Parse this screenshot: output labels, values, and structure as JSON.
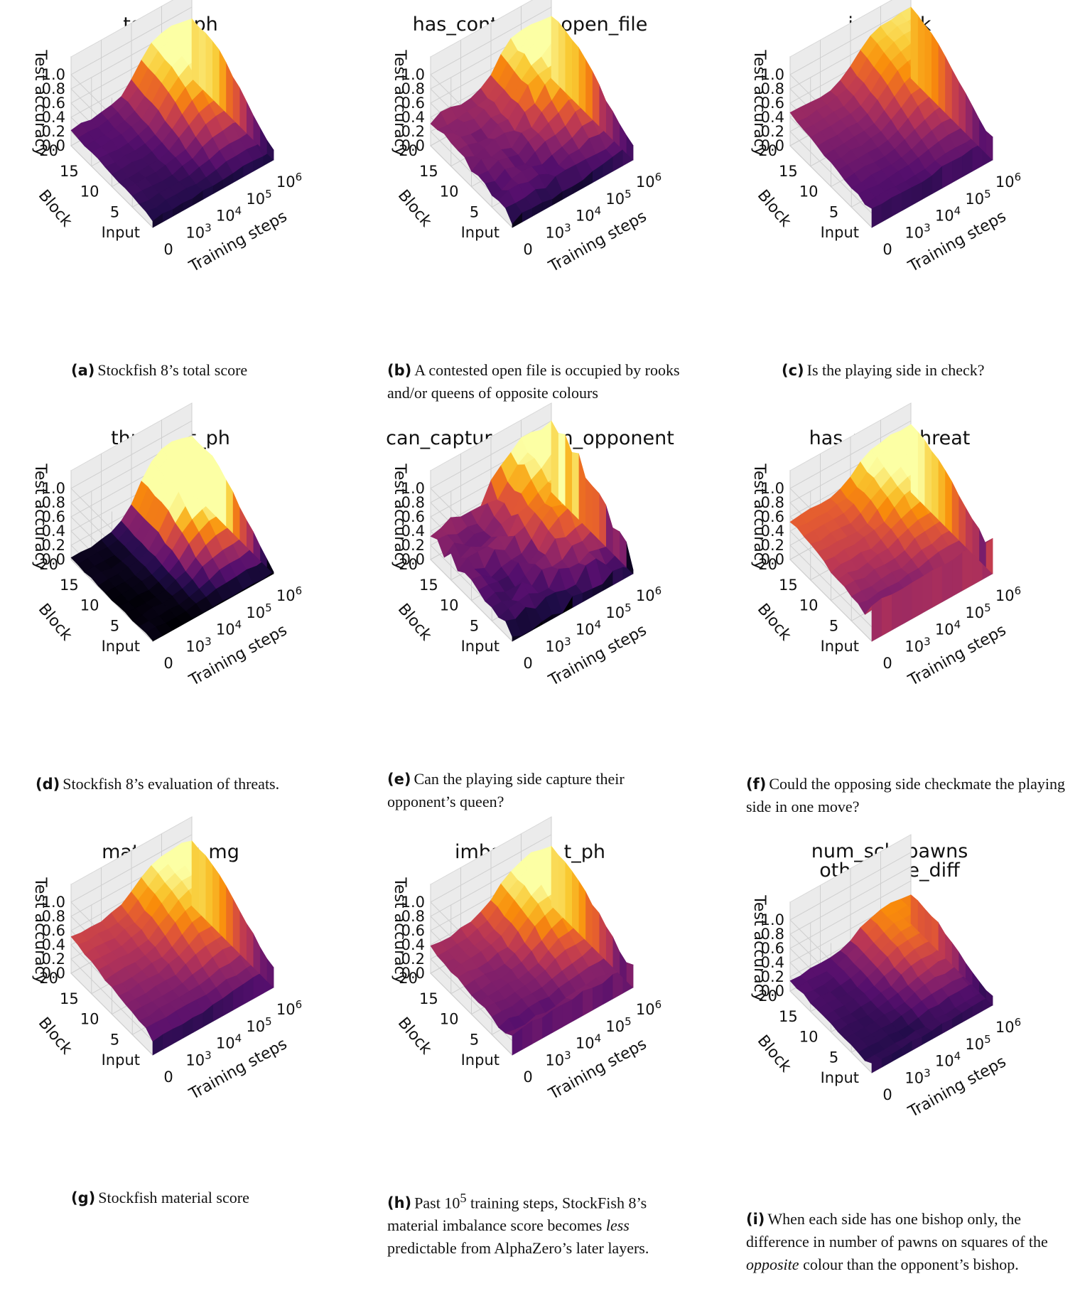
{
  "axes": {
    "z_label": "Test accuracy",
    "z_ticks": [
      "0.0",
      "0.2",
      "0.4",
      "0.6",
      "0.8",
      "1.0"
    ],
    "block_label": "Block",
    "block_ticks": [
      "20",
      "15",
      "10",
      "5",
      "Input"
    ],
    "steps_label": "Training steps",
    "steps_ticks": [
      {
        "base": "0",
        "exp": ""
      },
      {
        "base": "10",
        "exp": "3"
      },
      {
        "base": "10",
        "exp": "4"
      },
      {
        "base": "10",
        "exp": "5"
      },
      {
        "base": "10",
        "exp": "6"
      }
    ]
  },
  "chart_data": [
    {
      "type": "surface",
      "title": "total_t_ph",
      "caption_label": "(a)",
      "caption_parts": [
        {
          "text": "Stockfish 8’s total score",
          "style": "normal"
        }
      ],
      "zlim": [
        0,
        1
      ],
      "peak": 0.92,
      "early": 0.22,
      "input_level": 0.1,
      "late_block_level": 0.55,
      "noise": 0.02,
      "colormap_max": 0.75
    },
    {
      "type": "surface",
      "title": "has_contested_open_file",
      "caption_label": "(b)",
      "caption_parts": [
        {
          "text": "A contested open file is occupied by rooks and/or queens of opposite colours",
          "style": "normal"
        }
      ],
      "zlim": [
        0,
        1
      ],
      "peak": 0.95,
      "early": 0.35,
      "input_level": 0.1,
      "late_block_level": 0.75,
      "noise": 0.06,
      "colormap_max": 0.8
    },
    {
      "type": "surface",
      "title": "in_check",
      "caption_label": "(c)",
      "caption_parts": [
        {
          "text": "Is the playing side in check?",
          "style": "normal"
        }
      ],
      "zlim": [
        0,
        1
      ],
      "peak": 1.0,
      "early": 0.45,
      "input_level": 0.25,
      "late_block_level": 0.95,
      "noise": 0.02,
      "colormap_max": 1.0
    },
    {
      "type": "surface",
      "title": "threats_t_ph",
      "caption_label": "(d)",
      "caption_parts": [
        {
          "text": "Stockfish 8’s evaluation of threats.",
          "style": "normal"
        }
      ],
      "zlim": [
        0,
        1
      ],
      "peak": 0.88,
      "early": 0.02,
      "input_level": 0.0,
      "late_block_level": 0.5,
      "noise": 0.02,
      "colormap_max": 0.55
    },
    {
      "type": "surface",
      "title": "can_capture_queen_opponent",
      "caption_label": "(e)",
      "caption_parts": [
        {
          "text": "Can the playing side capture their opponent’s queen?",
          "style": "normal"
        }
      ],
      "zlim": [
        0,
        1
      ],
      "peak": 0.98,
      "early": 0.35,
      "input_level": 0.05,
      "late_block_level": 0.85,
      "noise": 0.1,
      "colormap_max": 0.85
    },
    {
      "type": "surface",
      "title": "has_mate_threat",
      "caption_label": "(f)",
      "caption_parts": [
        {
          "text": "Could the opposing side checkmate the playing side in one move?",
          "style": "normal"
        }
      ],
      "zlim": [
        0,
        1
      ],
      "peak": 0.98,
      "early": 0.55,
      "input_level": 0.5,
      "late_block_level": 0.85,
      "noise": 0.03,
      "colormap_max": 0.8
    },
    {
      "type": "surface",
      "title": "material_t_mg",
      "caption_label": "(g)",
      "caption_parts": [
        {
          "text": "Stockfish material score",
          "style": "normal"
        }
      ],
      "zlim": [
        0,
        1
      ],
      "peak": 0.97,
      "early": 0.5,
      "input_level": 0.2,
      "late_block_level": 0.8,
      "noise": 0.02,
      "colormap_max": 0.85
    },
    {
      "type": "surface",
      "title": "imbalance_t_ph",
      "caption_label": "(h)",
      "caption_parts": [
        {
          "text": "Past 10",
          "style": "normal"
        },
        {
          "text": "5",
          "style": "sup"
        },
        {
          "text": " training steps, StockFish 8’s material imbalance score becomes ",
          "style": "normal"
        },
        {
          "text": "less",
          "style": "italic"
        },
        {
          "text": " predictable from AlphaZero’s later layers.",
          "style": "normal"
        }
      ],
      "zlim": [
        0,
        1
      ],
      "peak": 0.9,
      "early": 0.38,
      "input_level": 0.3,
      "late_block_level": 0.6,
      "noise": 0.03,
      "colormap_max": 0.75
    },
    {
      "type": "surface",
      "title": "num_scb_pawns\nother_side_diff",
      "caption_label": "(i)",
      "caption_parts": [
        {
          "text": "When each side has one bishop only, the difference in number of pawns on squares of the ",
          "style": "normal"
        },
        {
          "text": "opposite",
          "style": "italic"
        },
        {
          "text": " colour than the opponent’s bishop.",
          "style": "normal"
        }
      ],
      "zlim": [
        0,
        1
      ],
      "peak": 0.45,
      "early": 0.15,
      "input_level": 0.12,
      "late_block_level": 0.3,
      "noise": 0.02,
      "colormap_max": 0.55
    }
  ]
}
